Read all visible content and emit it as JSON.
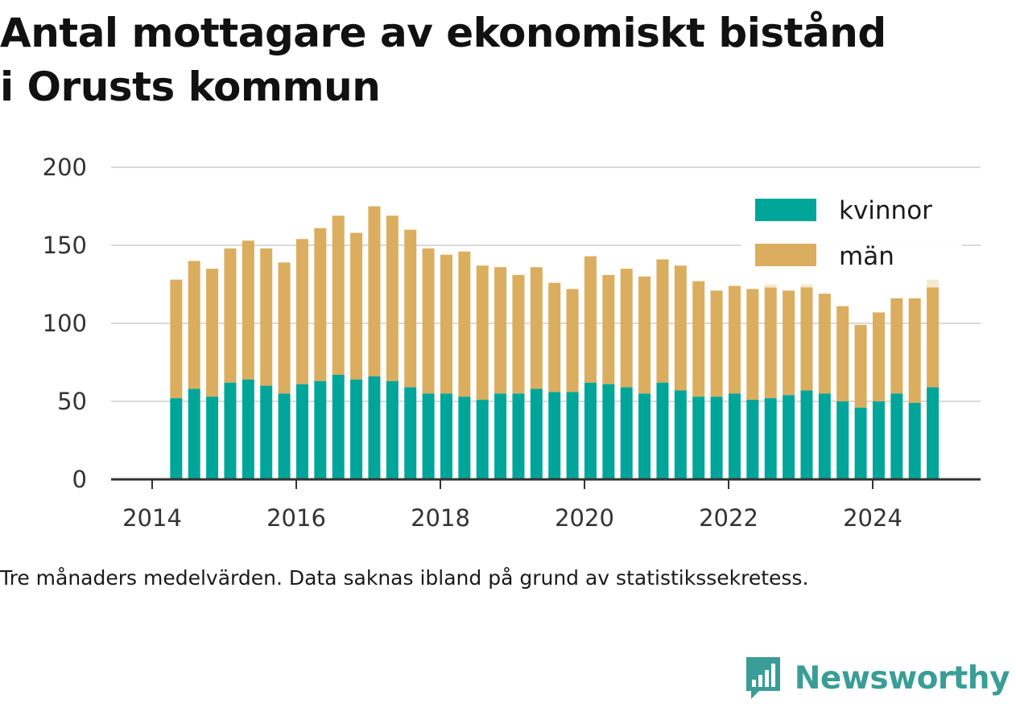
{
  "title": {
    "line1": "Antal mottagare av ekonomiskt bistånd",
    "line2": "i Orusts kommun"
  },
  "caption": "Tre månaders medelvärden. Data saknas ibland på grund av statistikssekretess.",
  "brand": {
    "name": "Newsworthy",
    "icon": "newsworthy-logo-icon"
  },
  "colors": {
    "kvinnor": "#00a59a",
    "man": "#dbad5e",
    "man_faded": "#f5e9cf",
    "grid": "#d9d9d9",
    "axis": "#333333"
  },
  "chart_data": {
    "type": "bar",
    "stacked": true,
    "ylim": [
      0,
      200
    ],
    "yticks": [
      "0",
      "50",
      "100",
      "150",
      "200"
    ],
    "xticks": [
      "2014",
      "2016",
      "2018",
      "2020",
      "2022",
      "2024"
    ],
    "xlim": [
      "2014-01",
      "2025-12"
    ],
    "grid": true,
    "legend_position": "top-right",
    "x": [
      "2014-05",
      "2014-08",
      "2014-11",
      "2015-02",
      "2015-05",
      "2015-08",
      "2015-11",
      "2016-02",
      "2016-05",
      "2016-08",
      "2016-11",
      "2017-02",
      "2017-05",
      "2017-08",
      "2017-11",
      "2018-02",
      "2018-05",
      "2018-08",
      "2018-11",
      "2019-02",
      "2019-05",
      "2019-08",
      "2019-11",
      "2020-02",
      "2020-05",
      "2020-08",
      "2020-11",
      "2021-02",
      "2021-05",
      "2021-08",
      "2021-11",
      "2022-02",
      "2022-05",
      "2022-08",
      "2022-11",
      "2023-02",
      "2023-05",
      "2023-08",
      "2023-11",
      "2024-02",
      "2024-05",
      "2024-08",
      "2024-11"
    ],
    "series": [
      {
        "name": "kvinnor",
        "values": [
          52,
          58,
          53,
          62,
          64,
          60,
          55,
          61,
          63,
          67,
          64,
          66,
          63,
          59,
          55,
          55,
          53,
          51,
          55,
          55,
          58,
          56,
          56,
          62,
          61,
          59,
          55,
          62,
          57,
          53,
          53,
          55,
          51,
          52,
          54,
          57,
          55,
          50,
          46,
          50,
          55,
          49,
          59
        ]
      },
      {
        "name": "män",
        "values": [
          76,
          82,
          82,
          86,
          89,
          88,
          84,
          93,
          98,
          102,
          94,
          109,
          106,
          101,
          93,
          89,
          93,
          86,
          81,
          76,
          78,
          70,
          66,
          81,
          70,
          76,
          75,
          79,
          80,
          74,
          68,
          69,
          71,
          71,
          67,
          66,
          64,
          61,
          53,
          57,
          61,
          67,
          64
        ]
      }
    ],
    "faded_extra": [
      0,
      0,
      0,
      0,
      0,
      0,
      0,
      0,
      0,
      0,
      0,
      0,
      0,
      0,
      0,
      0,
      0,
      0,
      0,
      0,
      0,
      0,
      0,
      0,
      0,
      0,
      0,
      0,
      0,
      0,
      0,
      0,
      0,
      2,
      0,
      2,
      0,
      0,
      0,
      0,
      0,
      0,
      5
    ]
  }
}
